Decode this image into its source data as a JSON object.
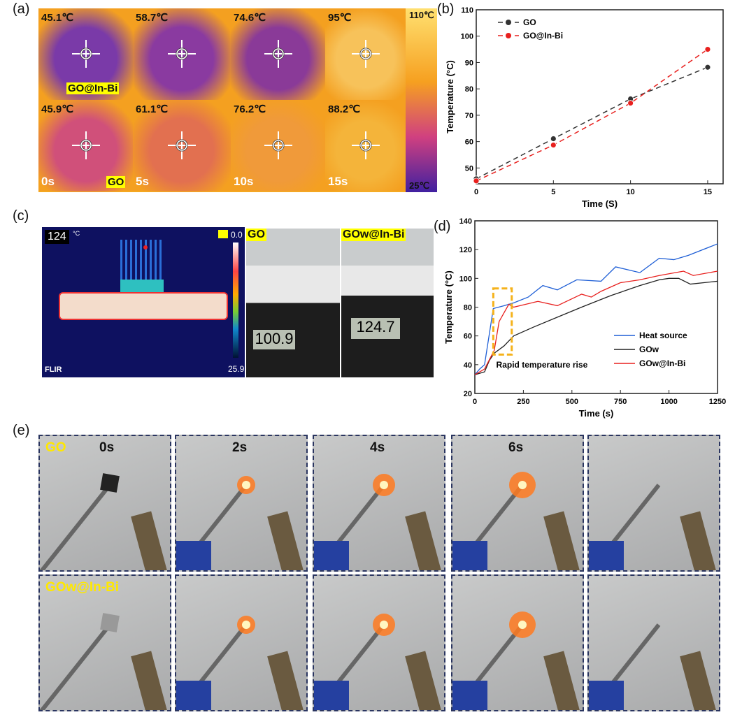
{
  "panel_labels": {
    "a": "(a)",
    "b": "(b)",
    "c": "(c)",
    "d": "(d)",
    "e": "(e)"
  },
  "panel_a": {
    "top_row": [
      "45.1℃",
      "58.7℃",
      "74.6℃",
      "95℃"
    ],
    "bottom_row": [
      "45.9℃",
      "61.1℃",
      "76.2℃",
      "88.2℃"
    ],
    "times": [
      "0s",
      "5s",
      "10s",
      "15s"
    ],
    "sample_top": "GO@In-Bi",
    "sample_bottom": "GO",
    "colorbar_max": "110℃",
    "colorbar_min": "25℃"
  },
  "panel_c": {
    "readout": "124",
    "unit": "°C",
    "scale_top": "0.0",
    "scale_bottom": "25.9",
    "brand": "FLIR",
    "photo1_label": "GO",
    "photo2_label": "GOw@In-Bi",
    "meter1": "100.9",
    "meter2": "124.7"
  },
  "panel_e": {
    "row1_label": "GO",
    "row2_label": "GOw@In-Bi",
    "times": [
      "0s",
      "2s",
      "4s",
      "6s"
    ]
  },
  "chart_data": [
    {
      "type": "line",
      "xlabel": "Time (S)",
      "ylabel": "Temperature (°C)",
      "xlim": [
        0,
        16
      ],
      "ylim": [
        44,
        110
      ],
      "xticks": [
        0,
        5,
        10,
        15
      ],
      "yticks": [
        50,
        60,
        70,
        80,
        90,
        100,
        110
      ],
      "legend": "top-left",
      "grid": false,
      "series": [
        {
          "name": "GO",
          "color": "#333333",
          "x": [
            0,
            5,
            10,
            15
          ],
          "y": [
            45.9,
            61.1,
            76.2,
            88.2
          ]
        },
        {
          "name": "GO@In-Bi",
          "color": "#e8201e",
          "x": [
            0,
            5,
            10,
            15
          ],
          "y": [
            45.1,
            58.7,
            74.6,
            95
          ]
        }
      ]
    },
    {
      "type": "line",
      "xlabel": "Time (s)",
      "ylabel": "Temperature (°C)",
      "xlim": [
        0,
        1250
      ],
      "ylim": [
        20,
        140
      ],
      "xticks": [
        0,
        250,
        500,
        750,
        1000,
        1250
      ],
      "yticks": [
        20,
        40,
        60,
        80,
        100,
        120,
        140
      ],
      "legend": "bottom-right",
      "grid": false,
      "annotation": "Rapid temperature rise",
      "annotation_color": "#f5b21b",
      "series": [
        {
          "name": "Heat source",
          "color": "#1f5fd6",
          "x": [
            0,
            25,
            50,
            95,
            150,
            200,
            275,
            350,
            425,
            525,
            650,
            725,
            850,
            950,
            1025,
            1100,
            1250
          ],
          "y": [
            33,
            37,
            40,
            79,
            81,
            83,
            87,
            95,
            92,
            99,
            98,
            108,
            104,
            114,
            113,
            116,
            124
          ]
        },
        {
          "name": "GOw",
          "color": "#222222",
          "x": [
            0,
            50,
            75,
            100,
            150,
            200,
            300,
            425,
            550,
            700,
            850,
            950,
            1000,
            1050,
            1110,
            1250
          ],
          "y": [
            33,
            35,
            43,
            48,
            53,
            60,
            66,
            73,
            80,
            88,
            95,
            99,
            100,
            100,
            96,
            98
          ]
        },
        {
          "name": "GOw@In-Bi",
          "color": "#e8201e",
          "x": [
            0,
            50,
            100,
            125,
            175,
            200,
            325,
            425,
            550,
            600,
            650,
            750,
            850,
            950,
            1075,
            1125,
            1250
          ],
          "y": [
            33,
            37,
            50,
            70,
            82,
            80,
            84,
            81,
            89,
            87,
            91,
            97,
            99,
            102,
            105,
            102,
            105
          ]
        }
      ]
    }
  ]
}
